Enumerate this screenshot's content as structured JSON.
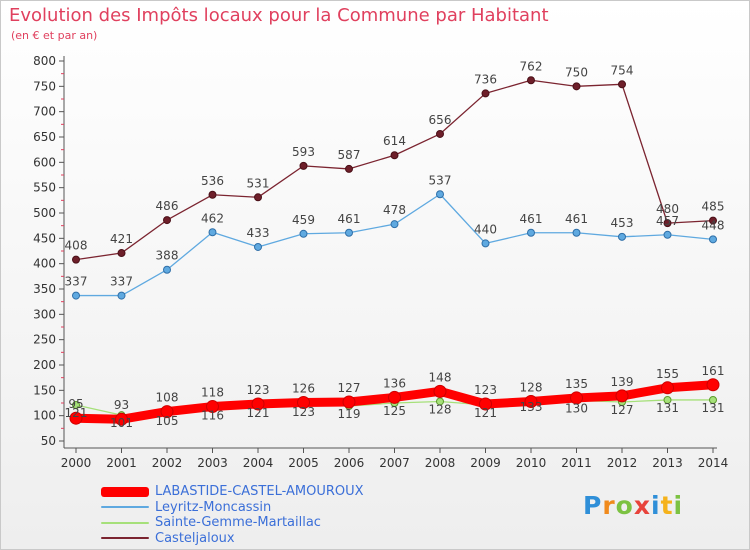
{
  "header": {
    "title": "Evolution des Impôts locaux pour la Commune par Habitant",
    "subtitle": "(en € et par an)"
  },
  "brand": {
    "letters": [
      "P",
      "r",
      "o",
      "x",
      "i",
      "t",
      "i"
    ]
  },
  "chart_data": {
    "type": "line",
    "title": "Evolution des Impôts locaux pour la Commune par Habitant",
    "subtitle": "(en € et par an)",
    "xlabel": "",
    "ylabel": "",
    "ylim": [
      50,
      800
    ],
    "yticks": [
      50,
      100,
      150,
      200,
      250,
      300,
      350,
      400,
      450,
      500,
      550,
      600,
      650,
      700,
      750,
      800
    ],
    "categories": [
      "2000",
      "2001",
      "2002",
      "2003",
      "2004",
      "2005",
      "2006",
      "2007",
      "2008",
      "2009",
      "2010",
      "2011",
      "2012",
      "2013",
      "2014"
    ],
    "grid": false,
    "legend_position": "bottom-left",
    "series": [
      {
        "name": "LABASTIDE-CASTEL-AMOUROUX",
        "color": "#ff0000",
        "values": [
          95,
          93,
          108,
          118,
          123,
          126,
          127,
          136,
          148,
          123,
          128,
          135,
          139,
          155,
          161
        ],
        "labels": [
          "95",
          "93",
          "108",
          "118",
          "123",
          "126",
          "127",
          "136",
          "148",
          "123",
          "128",
          "135",
          "139",
          "155",
          "161"
        ]
      },
      {
        "name": "Leyritz-Moncassin",
        "color": "#5fa9e0",
        "values": [
          337,
          337,
          388,
          462,
          433,
          459,
          461,
          478,
          537,
          440,
          461,
          461,
          453,
          457,
          448
        ],
        "labels": [
          "337",
          "337",
          "388",
          "462",
          "433",
          "459",
          "461",
          "478",
          "537",
          "440",
          "461",
          "461",
          "453",
          "457",
          "448"
        ]
      },
      {
        "name": "Sainte-Gemme-Martaillac",
        "color": "#a6e07a",
        "values": [
          121,
          101,
          105,
          116,
          121,
          123,
          119,
          125,
          128,
          121,
          133,
          130,
          127,
          131,
          131
        ],
        "labels": [
          "121",
          "101",
          "105",
          "116",
          "121",
          "123",
          "119",
          "125",
          "128",
          "121",
          "133",
          "130",
          "127",
          "131",
          "131"
        ]
      },
      {
        "name": "Casteljaloux",
        "color": "#7b2430",
        "values": [
          408,
          421,
          486,
          536,
          531,
          593,
          587,
          614,
          656,
          736,
          762,
          750,
          754,
          480,
          485
        ],
        "labels": [
          "408",
          "421",
          "486",
          "536",
          "531",
          "593",
          "587",
          "614",
          "656",
          "736",
          "762",
          "750",
          "754",
          "480",
          "485"
        ]
      }
    ]
  }
}
